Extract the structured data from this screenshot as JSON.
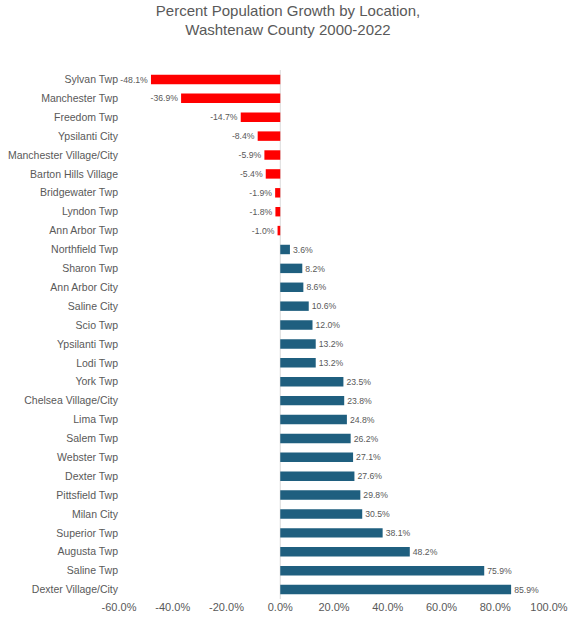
{
  "chart_data": {
    "type": "bar",
    "orientation": "horizontal",
    "title": "Percent Population Growth by Location,\nWashtenaw County 2000-2022",
    "categories": [
      "Sylvan Twp",
      "Manchester Twp",
      "Freedom Twp",
      "Ypsilanti City",
      "Manchester Village/City",
      "Barton Hills Village",
      "Bridgewater Twp",
      "Lyndon Twp",
      "Ann Arbor Twp",
      "Northfield Twp",
      "Sharon Twp",
      "Ann Arbor City",
      "Saline City",
      "Scio Twp",
      "Ypsilanti Twp",
      "Lodi Twp",
      "York Twp",
      "Chelsea Village/City",
      "Lima Twp",
      "Salem Twp",
      "Webster Twp",
      "Dexter Twp",
      "Pittsfield Twp",
      "Milan City",
      "Superior Twp",
      "Augusta Twp",
      "Saline Twp",
      "Dexter Village/City"
    ],
    "values": [
      -48.1,
      -36.9,
      -14.7,
      -8.4,
      -5.9,
      -5.4,
      -1.9,
      -1.8,
      -1.0,
      3.6,
      8.2,
      8.6,
      10.6,
      12.0,
      13.2,
      13.2,
      23.5,
      23.8,
      24.8,
      26.2,
      27.1,
      27.6,
      29.8,
      30.5,
      38.1,
      48.2,
      75.9,
      85.9
    ],
    "value_labels": [
      "-48.1%",
      "-36.9%",
      "-14.7%",
      "-8.4%",
      "-5.9%",
      "-5.4%",
      "-1.9%",
      "-1.8%",
      "-1.0%",
      "3.6%",
      "8.2%",
      "8.6%",
      "10.6%",
      "12.0%",
      "13.2%",
      "13.2%",
      "23.5%",
      "23.8%",
      "24.8%",
      "26.2%",
      "27.1%",
      "27.6%",
      "29.8%",
      "30.5%",
      "38.1%",
      "48.2%",
      "75.9%",
      "85.9%"
    ],
    "colors": [
      "#ff0000",
      "#ff0000",
      "#ff0000",
      "#ff0000",
      "#ff0000",
      "#ff0000",
      "#ff0000",
      "#ff0000",
      "#ff0000",
      "#1f5f7f",
      "#1f5f7f",
      "#1f5f7f",
      "#1f5f7f",
      "#1f5f7f",
      "#1f5f7f",
      "#1f5f7f",
      "#1f5f7f",
      "#1f5f7f",
      "#1f5f7f",
      "#1f5f7f",
      "#1f5f7f",
      "#1f5f7f",
      "#1f5f7f",
      "#1f5f7f",
      "#1f5f7f",
      "#1f5f7f",
      "#1f5f7f",
      "#1f5f7f"
    ],
    "xlim": [
      -60,
      100
    ],
    "xticks": [
      {
        "value": -60,
        "label": "-60.0%"
      },
      {
        "value": -40,
        "label": "-40.0%"
      },
      {
        "value": -20,
        "label": "-20.0%"
      },
      {
        "value": 0,
        "label": "0.0%"
      },
      {
        "value": 20,
        "label": "20.0%"
      },
      {
        "value": 40,
        "label": "40.0%"
      },
      {
        "value": 60,
        "label": "60.0%"
      },
      {
        "value": 80,
        "label": "80.0%"
      },
      {
        "value": 100,
        "label": "100.0%"
      }
    ],
    "data_labels": true,
    "grid": false
  }
}
